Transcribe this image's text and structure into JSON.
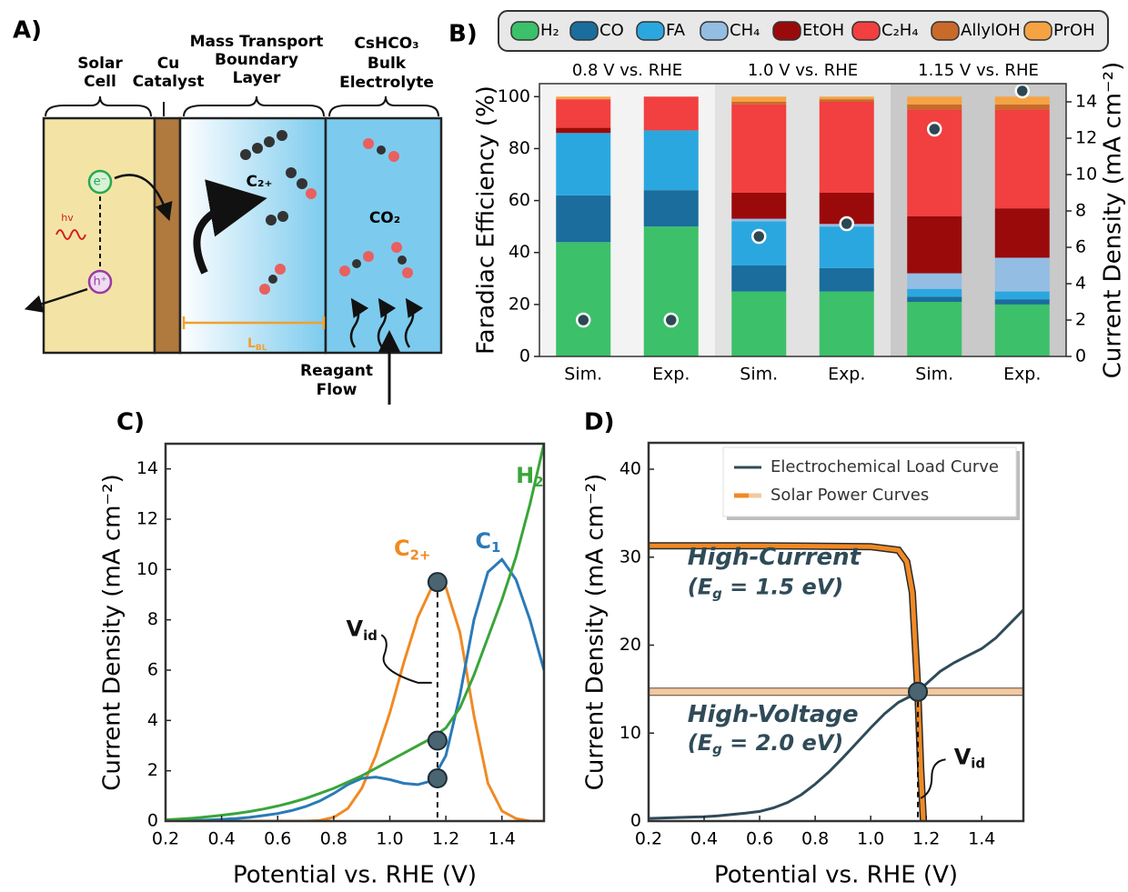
{
  "diagram": {
    "label": "A)",
    "solar_cell": [
      "Solar",
      "Cell"
    ],
    "catalyst": [
      "Cu",
      "Catalyst"
    ],
    "boundary_layer": [
      "Mass Transport",
      "Boundary",
      "Layer"
    ],
    "electrolyte": [
      "CsHCO₃",
      "Bulk",
      "Electrolyte"
    ],
    "photon": "hv",
    "electron": "e⁻",
    "hole": "h⁺",
    "product": "C₂₊",
    "reactant": "CO₂",
    "thickness": [
      "L",
      "BL"
    ],
    "flow": [
      "Reagant",
      "Flow"
    ]
  },
  "chart_data": [
    {
      "type": "bar",
      "label": "B)",
      "stacked": true,
      "group_labels": [
        "0.8 V vs. RHE",
        "1.0 V vs. RHE",
        "1.15 V vs. RHE"
      ],
      "categories": [
        "Sim.",
        "Exp.",
        "Sim.",
        "Exp.",
        "Sim.",
        "Exp."
      ],
      "ylabel": "Faradiac Efficiency (%)",
      "y2label": "Current Density (mA cm⁻²)",
      "ylim": [
        0,
        105
      ],
      "yticks": [
        0,
        20,
        40,
        60,
        80,
        100
      ],
      "y2lim": [
        0,
        15
      ],
      "y2ticks": [
        0,
        2,
        4,
        6,
        8,
        10,
        12,
        14
      ],
      "legend": "top",
      "series": [
        {
          "name": "H₂",
          "color": "#3cc06a",
          "values": [
            44,
            50,
            25,
            25,
            21,
            20
          ]
        },
        {
          "name": "CO",
          "color": "#1a6d9c",
          "values": [
            18,
            14,
            10,
            9,
            2,
            2
          ]
        },
        {
          "name": "FA",
          "color": "#2ba7e0",
          "values": [
            24,
            23,
            17,
            16,
            3,
            3
          ]
        },
        {
          "name": "CH₄",
          "color": "#93bde3",
          "values": [
            0,
            0,
            1,
            1,
            6,
            13
          ]
        },
        {
          "name": "EtOH",
          "color": "#9b0a0a",
          "values": [
            2,
            0,
            10,
            12,
            22,
            19
          ]
        },
        {
          "name": "C₂H₄",
          "color": "#f23f3f",
          "values": [
            11,
            13,
            34,
            35,
            41,
            38
          ]
        },
        {
          "name": "AllylOH",
          "color": "#c96a2a",
          "values": [
            0,
            0,
            1,
            1,
            2,
            2
          ]
        },
        {
          "name": "PrOH",
          "color": "#f5a243",
          "values": [
            1,
            0,
            2,
            1,
            3,
            3
          ]
        },
        {
          "type": "scatter",
          "axis": "y2",
          "color": "#2d4753",
          "values": [
            2.0,
            2.0,
            6.6,
            7.3,
            12.5,
            14.6
          ]
        }
      ]
    },
    {
      "type": "line",
      "label": "C)",
      "xlabel": "Potential vs. RHE (V)",
      "ylabel": "Current Density (mA cm⁻²)",
      "xlim": [
        0.2,
        1.55
      ],
      "ylim": [
        0,
        15
      ],
      "xticks": [
        0.2,
        0.4,
        0.6,
        0.8,
        {
          "value": 1,
          "label": "1.0"
        },
        1.2,
        1.4
      ],
      "yticks": [
        0,
        2,
        4,
        6,
        8,
        10,
        12,
        14
      ],
      "x": [
        0.2,
        0.25,
        0.3,
        0.35,
        0.4,
        0.45,
        0.5,
        0.55,
        0.6,
        0.65,
        0.7,
        0.75,
        0.8,
        0.85,
        0.9,
        0.95,
        1,
        1.05,
        1.1,
        1.15,
        1.2,
        1.25,
        1.3,
        1.35,
        1.4,
        1.45,
        1.5,
        1.55
      ],
      "series": [
        {
          "color": "#f08a24",
          "values": [
            0,
            0,
            0,
            0,
            0,
            0,
            0,
            0,
            0,
            0,
            0,
            0.02,
            0.15,
            0.5,
            1.3,
            2.6,
            4.3,
            6.3,
            8.1,
            9.3,
            9.3,
            7.5,
            4.2,
            1.5,
            0.4,
            0.1,
            0,
            0
          ]
        },
        {
          "color": "#2a7ab8",
          "values": [
            0,
            0,
            0.02,
            0.04,
            0.07,
            0.1,
            0.15,
            0.22,
            0.3,
            0.42,
            0.58,
            0.8,
            1.1,
            1.45,
            1.7,
            1.75,
            1.65,
            1.5,
            1.45,
            1.6,
            2.6,
            5.0,
            8.0,
            9.9,
            10.4,
            9.6,
            8.0,
            6.0
          ]
        },
        {
          "color": "#3aa53a",
          "values": [
            0.05,
            0.08,
            0.12,
            0.17,
            0.23,
            0.3,
            0.38,
            0.48,
            0.6,
            0.74,
            0.9,
            1.1,
            1.3,
            1.55,
            1.8,
            2.1,
            2.4,
            2.7,
            3.0,
            3.3,
            3.7,
            4.5,
            5.8,
            7.3,
            8.8,
            10.5,
            12.6,
            15
          ]
        }
      ],
      "markers": {
        "x": 1.17,
        "values": [
          9.5,
          3.2,
          1.7
        ]
      },
      "annotations": [
        {
          "parts": [
            "H",
            "2"
          ],
          "color": "#3aa53a"
        },
        {
          "parts": [
            "C",
            "2+"
          ],
          "color": "#f08a24"
        },
        {
          "parts": [
            "C",
            "1"
          ],
          "color": "#2a7ab8"
        },
        {
          "parts": [
            "V",
            "id"
          ],
          "color": "#111111"
        }
      ]
    },
    {
      "type": "line",
      "label": "D)",
      "xlabel": "Potential vs. RHE (V)",
      "ylabel": "Current Density (mA cm⁻²)",
      "xlim": [
        0.2,
        1.55
      ],
      "ylim": [
        0,
        43
      ],
      "xticks": [
        0.2,
        0.4,
        0.6,
        0.8,
        {
          "value": 1,
          "label": "1.0"
        },
        1.2,
        1.4
      ],
      "yticks": [
        0,
        10,
        20,
        30,
        40
      ],
      "legend": "upper right",
      "x": [
        0.2,
        0.25,
        0.3,
        0.35,
        0.4,
        0.45,
        0.5,
        0.55,
        0.6,
        0.65,
        0.7,
        0.75,
        0.8,
        0.85,
        0.9,
        0.95,
        1,
        1.05,
        1.1,
        1.15,
        1.2,
        1.25,
        1.3,
        1.35,
        1.4,
        1.45,
        1.5,
        1.55
      ],
      "series": [
        {
          "name": "Electrochemical Load Curve",
          "color": "#2f4b58",
          "values": [
            0.3,
            0.35,
            0.4,
            0.45,
            0.5,
            0.6,
            0.75,
            0.9,
            1.1,
            1.5,
            2.1,
            3.0,
            4.2,
            5.6,
            7.2,
            8.9,
            10.6,
            12.2,
            13.5,
            14.3,
            15.6,
            17.0,
            18.0,
            18.8,
            19.6,
            20.8,
            22.4,
            24.0
          ]
        },
        {
          "name": "Solar Power Curves",
          "color": "#f08a24",
          "band_color": "#f2c9a0",
          "curves": [
            {
              "x": [
                0.2,
                0.6,
                1.0,
                1.1,
                1.13,
                1.15,
                1.17,
                1.18,
                1.19
              ],
              "values": [
                31.3,
                31.3,
                31.2,
                30.8,
                29.5,
                26,
                14.7,
                6,
                0
              ]
            },
            {
              "x": [
                0.2,
                1.55
              ],
              "values": [
                14.7,
                14.7
              ]
            }
          ]
        }
      ],
      "markers": {
        "x": 1.17,
        "values": [
          14.7
        ]
      },
      "annotations": [
        {
          "parts": [
            "High-Current"
          ],
          "color": "#2f4b58"
        },
        {
          "parts": [
            "(E",
            "g",
            " = 1.5 eV)"
          ],
          "color": "#2f4b58"
        },
        {
          "parts": [
            "High-Voltage"
          ],
          "color": "#2f4b58"
        },
        {
          "parts": [
            "(E",
            "g",
            " = 2.0 eV)"
          ],
          "color": "#2f4b58"
        },
        {
          "parts": [
            "V",
            "id"
          ],
          "color": "#111111"
        }
      ]
    }
  ]
}
